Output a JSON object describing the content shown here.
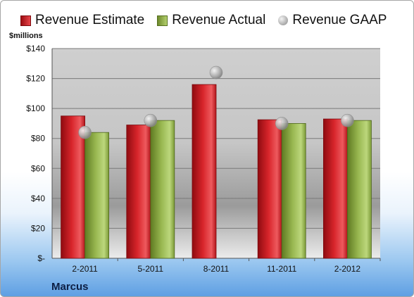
{
  "legend": {
    "estimate": "Revenue Estimate",
    "actual": "Revenue Actual",
    "gaap": "Revenue GAAP"
  },
  "unit_label": "$millions",
  "company": "Marcus",
  "colors": {
    "estimate": "#c8161d",
    "actual": "#93b04a",
    "gaap": "#b3b3b3"
  },
  "chart_data": {
    "type": "bar",
    "categories": [
      "2-2011",
      "5-2011",
      "8-2011",
      "11-2011",
      "2-2012"
    ],
    "series": [
      {
        "name": "Revenue Estimate",
        "values": [
          95,
          89,
          116,
          92.5,
          93
        ]
      },
      {
        "name": "Revenue Actual",
        "values": [
          84,
          92,
          null,
          90,
          92
        ]
      },
      {
        "name": "Revenue GAAP",
        "type": "scatter",
        "values": [
          84,
          92,
          124,
          90,
          92
        ]
      }
    ],
    "ylabel": "$millions",
    "ylim": [
      0,
      140
    ],
    "yticks": [
      0,
      20,
      40,
      60,
      80,
      100,
      120,
      140
    ],
    "ytick_labels": [
      "$-",
      "$20",
      "$40",
      "$60",
      "$80",
      "$100",
      "$120",
      "$140"
    ],
    "grid": true,
    "legend_position": "top"
  }
}
